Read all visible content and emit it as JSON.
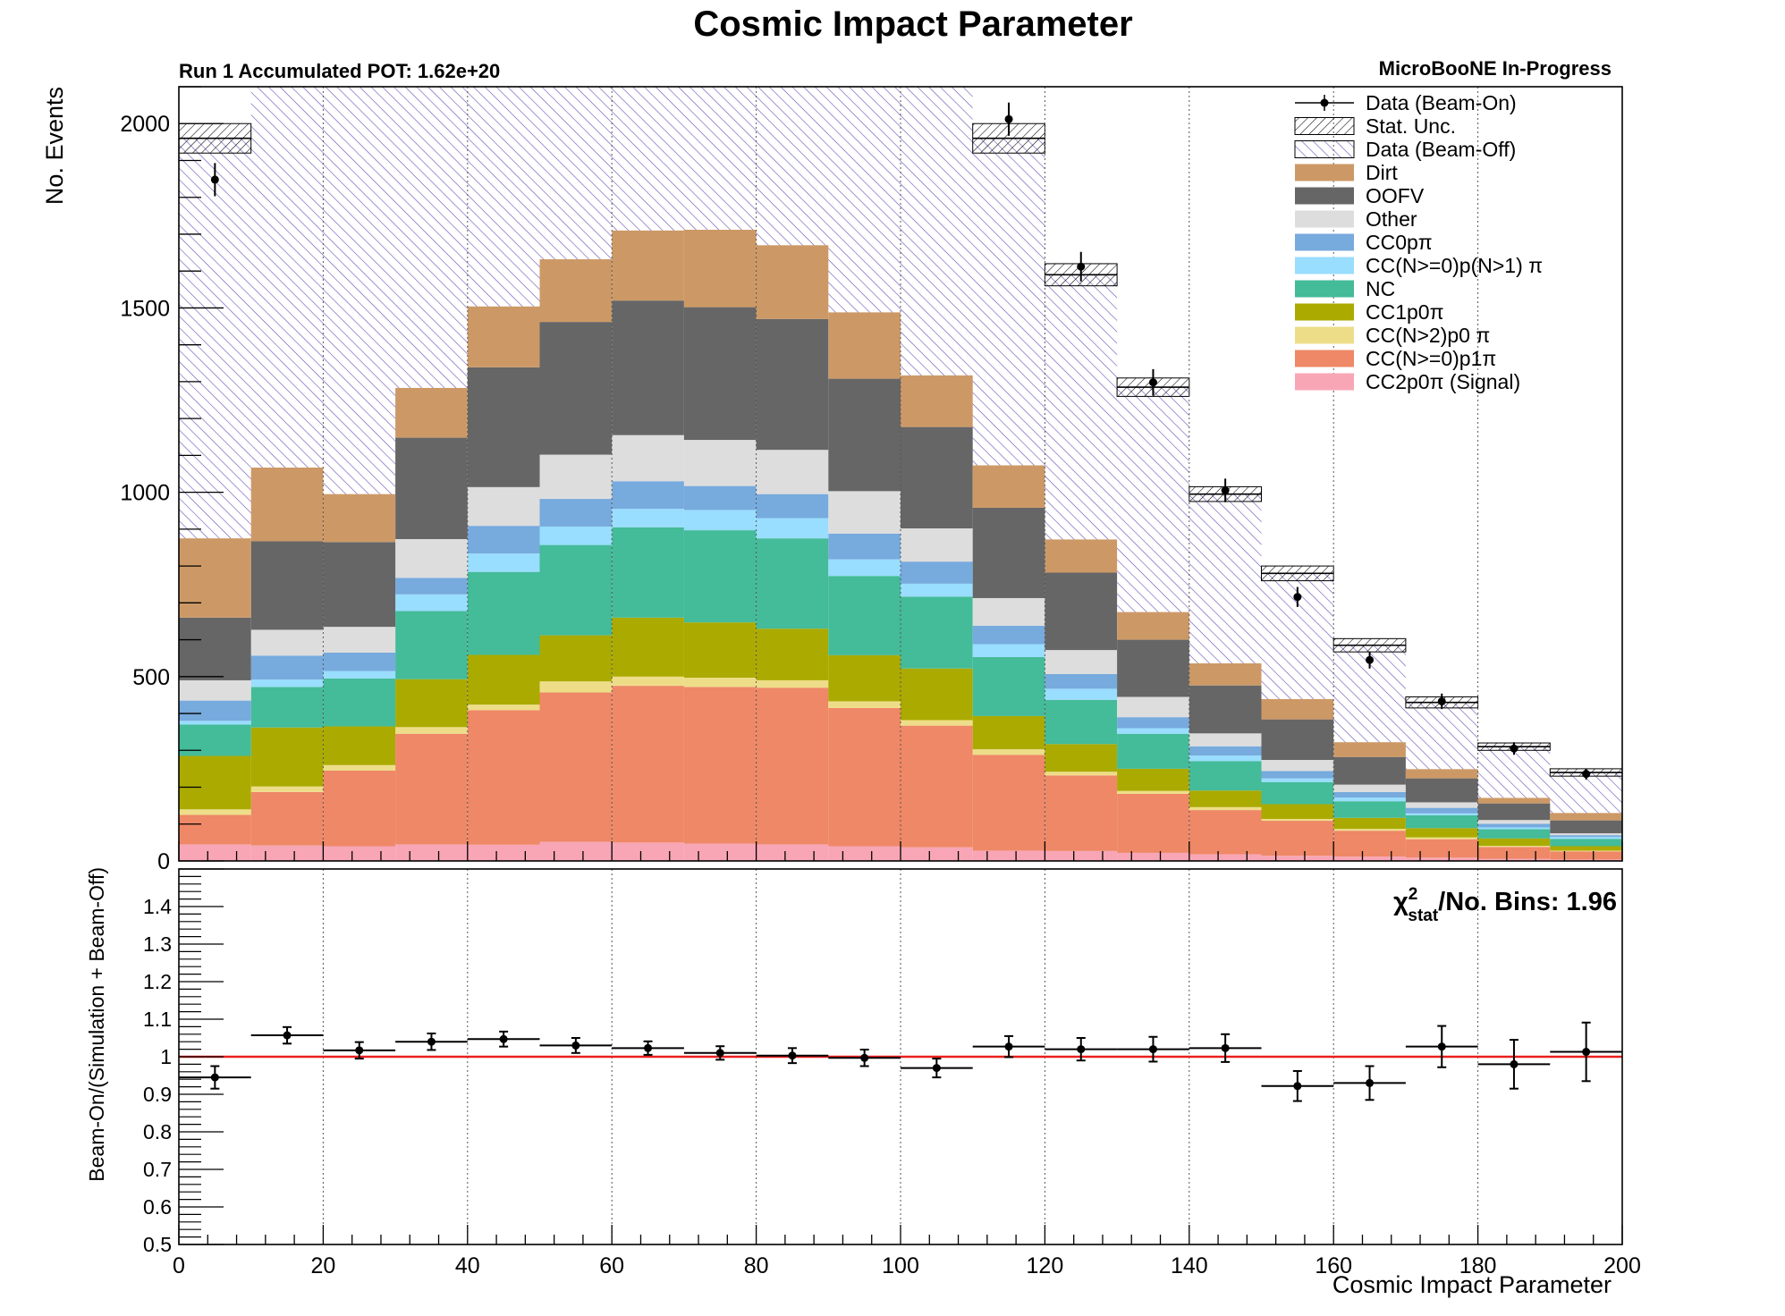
{
  "chart_data": [
    {
      "type": "bar",
      "stacked": true,
      "title": "Cosmic Impact Parameter",
      "left_label": "Run 1 Accumulated POT: 1.62e+20",
      "right_label": "MicroBooNE In-Progress",
      "ylabel": "No. Events",
      "xlim": [
        0,
        200
      ],
      "ylim": [
        0,
        2100
      ],
      "yticks": [
        0,
        500,
        1000,
        1500,
        2000
      ],
      "ytick_labels": [
        "0",
        "500",
        "1000",
        "1500",
        "2000"
      ],
      "grid": "vertical-dotted",
      "legend_position": "top-right",
      "bin_edges": [
        0,
        10,
        20,
        30,
        40,
        50,
        60,
        70,
        80,
        90,
        100,
        110,
        120,
        130,
        140,
        150,
        160,
        170,
        180,
        190,
        200
      ],
      "colors": {
        "signal": "#f8a6b6",
        "ccnp1pi": "#ee8866",
        "ccn2p0pi": "#eedd88",
        "cc1p0pi": "#aaaa00",
        "nc": "#44bb99",
        "ccnpn1pi": "#99ddff",
        "cc0ppi": "#77aadd",
        "other": "#dddddd",
        "oofv": "#666666",
        "dirt": "#cc9966",
        "beamoff_hatch": "#6a4fb3",
        "ratio_line": "#e8201e"
      },
      "legend": [
        {
          "key": "data",
          "label": "Data (Beam-On)",
          "style": "marker"
        },
        {
          "key": "stat",
          "label": "Stat. Unc.",
          "style": "hatch-black"
        },
        {
          "key": "beamoff",
          "label": "Data (Beam-Off)",
          "style": "hatch-purple"
        },
        {
          "key": "dirt",
          "label": "Dirt",
          "style": "fill"
        },
        {
          "key": "oofv",
          "label": "OOFV",
          "style": "fill"
        },
        {
          "key": "other",
          "label": "Other",
          "style": "fill"
        },
        {
          "key": "cc0ppi",
          "label": "CC0pπ",
          "style": "fill"
        },
        {
          "key": "ccnpn1pi",
          "label": "CC(N>=0)p(N>1) π",
          "style": "fill"
        },
        {
          "key": "nc",
          "label": "NC",
          "style": "fill"
        },
        {
          "key": "cc1p0pi",
          "label": "CC1p0π",
          "style": "fill"
        },
        {
          "key": "ccn2p0pi",
          "label": "CC(N>2)p0 π",
          "style": "fill"
        },
        {
          "key": "ccnp1pi",
          "label": "CC(N>=0)p1π",
          "style": "fill"
        },
        {
          "key": "signal",
          "label": "CC2p0π (Signal)",
          "style": "fill"
        }
      ],
      "series": [
        {
          "key": "signal",
          "name": "CC2p0π (Signal)",
          "values": [
            45,
            42,
            40,
            45,
            44,
            52,
            50,
            47,
            45,
            40,
            37,
            28,
            27,
            22,
            18,
            14,
            12,
            9,
            6,
            4
          ]
        },
        {
          "key": "ccnp1pi",
          "name": "CC(N>=0)p1π",
          "values": [
            80,
            145,
            205,
            300,
            365,
            405,
            425,
            425,
            425,
            375,
            330,
            260,
            205,
            160,
            120,
            95,
            70,
            50,
            32,
            22
          ]
        },
        {
          "key": "ccn2p0pi",
          "name": "CC(N>2)p0 π",
          "values": [
            15,
            15,
            15,
            18,
            15,
            30,
            25,
            25,
            20,
            18,
            15,
            15,
            10,
            8,
            8,
            5,
            5,
            5,
            3,
            2
          ]
        },
        {
          "key": "cc1p0pi",
          "name": "CC1p0π",
          "values": [
            145,
            160,
            105,
            130,
            135,
            125,
            160,
            150,
            140,
            125,
            140,
            90,
            75,
            60,
            45,
            40,
            30,
            25,
            20,
            12
          ]
        },
        {
          "key": "nc",
          "name": "NC",
          "values": [
            85,
            110,
            130,
            185,
            225,
            245,
            245,
            250,
            245,
            215,
            195,
            160,
            120,
            95,
            80,
            60,
            45,
            35,
            25,
            20
          ]
        },
        {
          "key": "ccnpn1pi",
          "name": "CC(N>=0)p(N>1) π",
          "values": [
            10,
            20,
            20,
            45,
            50,
            50,
            50,
            55,
            55,
            45,
            35,
            35,
            30,
            15,
            15,
            10,
            10,
            5,
            5,
            5
          ]
        },
        {
          "key": "cc0ppi",
          "name": "CC0pπ",
          "values": [
            55,
            65,
            50,
            45,
            75,
            75,
            75,
            65,
            65,
            70,
            60,
            50,
            40,
            30,
            25,
            20,
            15,
            15,
            10,
            5
          ]
        },
        {
          "key": "other",
          "name": "Other",
          "values": [
            55,
            70,
            70,
            105,
            105,
            120,
            125,
            125,
            120,
            115,
            90,
            75,
            65,
            55,
            35,
            30,
            20,
            15,
            10,
            5
          ]
        },
        {
          "key": "oofv",
          "name": "OOFV",
          "values": [
            170,
            240,
            230,
            275,
            325,
            360,
            365,
            360,
            355,
            305,
            275,
            245,
            210,
            155,
            130,
            110,
            75,
            65,
            45,
            35
          ]
        },
        {
          "key": "dirt",
          "name": "Dirt",
          "values": [
            215,
            200,
            130,
            135,
            165,
            170,
            190,
            210,
            200,
            180,
            140,
            115,
            90,
            75,
            60,
            55,
            40,
            25,
            15,
            20
          ]
        }
      ],
      "beam_off_total": [
        1960,
        2300,
        2300,
        2300,
        2300,
        2300,
        2300,
        2300,
        2300,
        2300,
        2300,
        1960,
        1590,
        1285,
        995,
        780,
        585,
        430,
        310,
        240
      ],
      "stat_unc_halfwidth": [
        40,
        0,
        0,
        0,
        0,
        0,
        0,
        0,
        0,
        0,
        0,
        40,
        30,
        25,
        20,
        20,
        18,
        15,
        10,
        10
      ],
      "data": {
        "x": [
          5,
          15,
          25,
          35,
          45,
          55,
          65,
          75,
          85,
          95,
          105,
          115,
          125,
          135,
          145,
          155,
          165,
          175,
          185,
          195
        ],
        "y": [
          1848,
          null,
          null,
          null,
          null,
          null,
          null,
          null,
          null,
          null,
          null,
          2012,
          1612,
          1298,
          1005,
          716,
          545,
          433,
          305,
          236
        ],
        "err": [
          45,
          null,
          null,
          null,
          null,
          null,
          null,
          null,
          null,
          null,
          null,
          45,
          40,
          36,
          32,
          27,
          23,
          21,
          17,
          15
        ]
      }
    },
    {
      "type": "scatter",
      "ylabel": "Beam-On/(Simulation + Beam-Off)",
      "xlabel": "Cosmic Impact Parameter",
      "annotation": "χ²stat/No. Bins: 1.96",
      "annotation_main": "χ",
      "annotation_sup": "2",
      "annotation_sub": "stat",
      "annotation_rest": "/No. Bins: 1.96",
      "xlim": [
        0,
        200
      ],
      "ylim": [
        0.5,
        1.5
      ],
      "xticks": [
        0,
        20,
        40,
        60,
        80,
        100,
        120,
        140,
        160,
        180,
        200
      ],
      "xtick_labels": [
        "0",
        "20",
        "40",
        "60",
        "80",
        "100",
        "120",
        "140",
        "160",
        "180",
        "200"
      ],
      "yticks": [
        0.5,
        0.6,
        0.7,
        0.8,
        0.9,
        1,
        1.1,
        1.2,
        1.3,
        1.4
      ],
      "ytick_labels": [
        "0.5",
        "0.6",
        "0.7",
        "0.8",
        "0.9",
        "1",
        "1.1",
        "1.2",
        "1.3",
        "1.4"
      ],
      "reference_line": 1,
      "x": [
        5,
        15,
        25,
        35,
        45,
        55,
        65,
        75,
        85,
        95,
        105,
        115,
        125,
        135,
        145,
        155,
        165,
        175,
        185,
        195
      ],
      "y": [
        0.945,
        1.057,
        1.017,
        1.04,
        1.047,
        1.03,
        1.023,
        1.01,
        1.003,
        0.997,
        0.97,
        1.027,
        1.02,
        1.02,
        1.023,
        0.922,
        0.93,
        1.027,
        0.98,
        1.013
      ],
      "err": [
        0.03,
        0.022,
        0.022,
        0.022,
        0.02,
        0.02,
        0.018,
        0.018,
        0.02,
        0.022,
        0.025,
        0.028,
        0.03,
        0.033,
        0.037,
        0.04,
        0.045,
        0.055,
        0.065,
        0.078
      ]
    }
  ]
}
